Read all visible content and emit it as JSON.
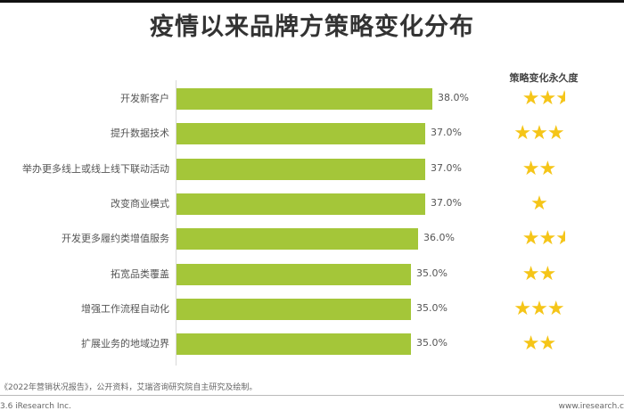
{
  "title": "疫情以来品牌方策略变化分布",
  "stars_header": "策略变化永久度",
  "source": "《2022年营销状况报告》，公开资料，艾瑞咨询研究院自主研究及绘制。",
  "footer": {
    "left": "3.6 iResearch Inc.",
    "right": "www.iresearch.c"
  },
  "colors": {
    "bar": "#a4c639",
    "star": "#f5c518"
  },
  "rows": [
    {
      "label": "开发新客户",
      "value": "38.0%",
      "stars": "★★",
      "half": "★"
    },
    {
      "label": "提升数据技术",
      "value": "37.0%",
      "stars": "★★★",
      "half": ""
    },
    {
      "label": "举办更多线上或线上线下联动活动",
      "value": "37.0%",
      "stars": "★★",
      "half": ""
    },
    {
      "label": "改变商业模式",
      "value": "37.0%",
      "stars": "★",
      "half": ""
    },
    {
      "label": "开发更多履约类增值服务",
      "value": "36.0%",
      "stars": "★★",
      "half": "★"
    },
    {
      "label": "拓宽品类覆盖",
      "value": "35.0%",
      "stars": "★★",
      "half": ""
    },
    {
      "label": "增强工作流程自动化",
      "value": "35.0%",
      "stars": "★★★",
      "half": ""
    },
    {
      "label": "扩展业务的地域边界",
      "value": "35.0%",
      "stars": "★★",
      "half": ""
    }
  ],
  "chart_data": {
    "type": "bar",
    "orientation": "horizontal",
    "title": "疫情以来品牌方策略变化分布",
    "categories": [
      "开发新客户",
      "提升数据技术",
      "举办更多线上或线上线下联动活动",
      "改变商业模式",
      "开发更多履约类增值服务",
      "拓宽品类覆盖",
      "增强工作流程自动化",
      "扩展业务的地域边界"
    ],
    "values": [
      38.0,
      37.0,
      37.0,
      37.0,
      36.0,
      35.0,
      35.0,
      35.0
    ],
    "unit": "%",
    "permanence_stars": [
      2.5,
      3,
      2,
      1,
      2.5,
      2,
      3,
      2
    ],
    "permanence_label": "策略变化永久度",
    "xlabel": "",
    "ylabel": "",
    "grid": false,
    "legend": "none"
  }
}
